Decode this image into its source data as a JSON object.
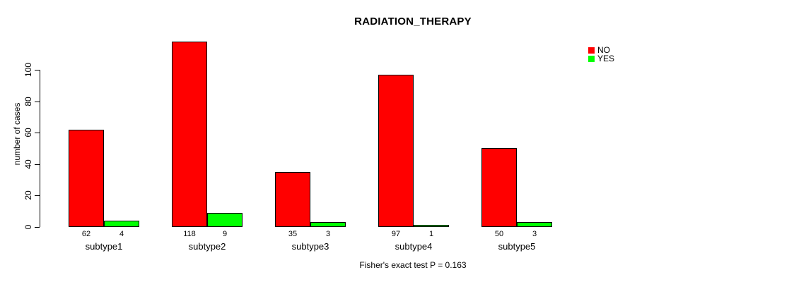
{
  "chart_data": {
    "type": "bar",
    "title": "RADIATION_THERAPY",
    "ylabel": "number of cases",
    "xlabel": "",
    "categories": [
      "subtype1",
      "subtype2",
      "subtype3",
      "subtype4",
      "subtype5"
    ],
    "series": [
      {
        "name": "NO",
        "color": "#ff0000",
        "values": [
          62,
          118,
          35,
          97,
          50
        ]
      },
      {
        "name": "YES",
        "color": "#00ff00",
        "values": [
          4,
          9,
          3,
          1,
          3
        ]
      }
    ],
    "yticks": [
      0,
      20,
      40,
      60,
      80,
      100
    ],
    "ylim": [
      0,
      120
    ],
    "grid": false,
    "legend_position": "top-right",
    "bar_value_labels": true,
    "bar_border_color": "#000000",
    "background": "#ffffff",
    "annotation": "Fisher's exact test P = 0.163"
  }
}
